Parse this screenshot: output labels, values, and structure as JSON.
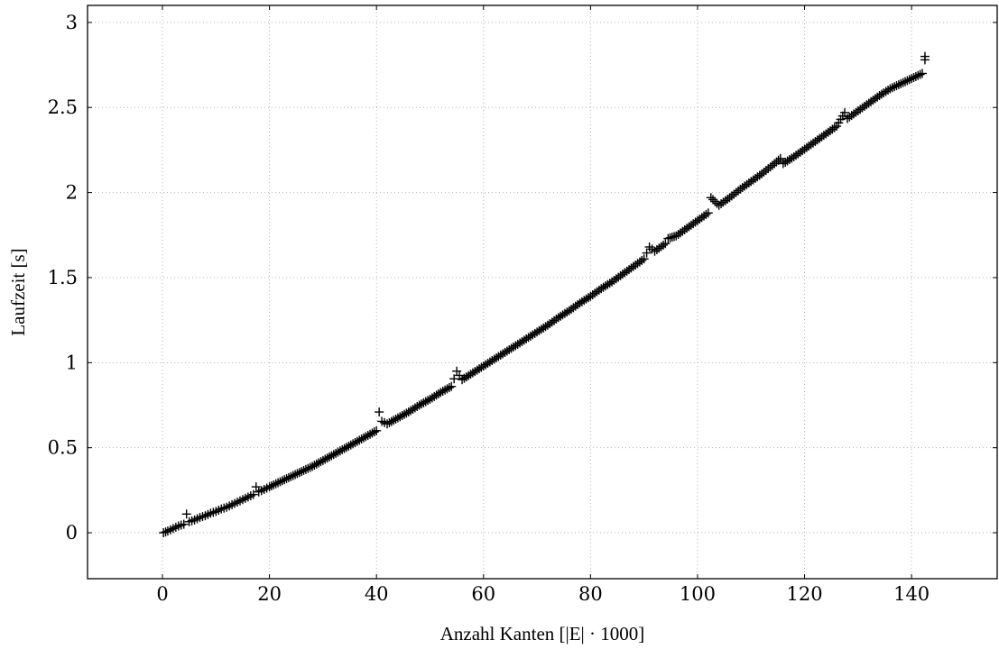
{
  "chart_data": {
    "type": "scatter",
    "title": "",
    "xlabel": "Anzahl Kanten [|E| · 1000]",
    "ylabel": "Laufzeit [s]",
    "xlim": [
      -14,
      156
    ],
    "ylim": [
      -0.27,
      3.1
    ],
    "x_ticks": [
      0,
      20,
      40,
      60,
      80,
      100,
      120,
      140
    ],
    "y_ticks": [
      0,
      0.5,
      1,
      1.5,
      2,
      2.5,
      3
    ],
    "x_tick_labels": [
      "0",
      "20",
      "40",
      "60",
      "80",
      "100",
      "120",
      "140"
    ],
    "y_tick_labels": [
      "0",
      "0.5",
      "1",
      "1.5",
      "2",
      "2.5",
      "3"
    ],
    "grid": true,
    "marker": "+",
    "marker_color": "#000000",
    "series": [
      {
        "points": [
          [
            0.2,
            0.0
          ],
          [
            1.0,
            0.01
          ],
          [
            2.0,
            0.025
          ],
          [
            3.0,
            0.04
          ],
          [
            4.0,
            0.05
          ],
          [
            4.5,
            0.11
          ],
          [
            5.0,
            0.065
          ],
          [
            6.0,
            0.075
          ],
          [
            7.0,
            0.09
          ],
          [
            8.0,
            0.1
          ],
          [
            9.0,
            0.115
          ],
          [
            10.0,
            0.125
          ],
          [
            11.0,
            0.14
          ],
          [
            12.0,
            0.15
          ],
          [
            13.0,
            0.165
          ],
          [
            14.0,
            0.18
          ],
          [
            15.0,
            0.195
          ],
          [
            16.0,
            0.21
          ],
          [
            17.0,
            0.225
          ],
          [
            17.5,
            0.27
          ],
          [
            18.0,
            0.24
          ],
          [
            19.0,
            0.255
          ],
          [
            20.0,
            0.27
          ],
          [
            22.0,
            0.3
          ],
          [
            24.0,
            0.33
          ],
          [
            26.0,
            0.36
          ],
          [
            28.0,
            0.39
          ],
          [
            30.0,
            0.425
          ],
          [
            32.0,
            0.46
          ],
          [
            34.0,
            0.495
          ],
          [
            36.0,
            0.53
          ],
          [
            38.0,
            0.565
          ],
          [
            40.0,
            0.6
          ],
          [
            40.5,
            0.71
          ],
          [
            41.0,
            0.655
          ],
          [
            42.0,
            0.64
          ],
          [
            44.0,
            0.675
          ],
          [
            46.0,
            0.71
          ],
          [
            48.0,
            0.75
          ],
          [
            50.0,
            0.785
          ],
          [
            52.0,
            0.825
          ],
          [
            54.0,
            0.86
          ],
          [
            55.0,
            0.95
          ],
          [
            56.0,
            0.9
          ],
          [
            58.0,
            0.94
          ],
          [
            60.0,
            0.98
          ],
          [
            62.0,
            1.02
          ],
          [
            64.0,
            1.06
          ],
          [
            66.0,
            1.1
          ],
          [
            68.0,
            1.14
          ],
          [
            70.0,
            1.18
          ],
          [
            72.0,
            1.22
          ],
          [
            74.0,
            1.265
          ],
          [
            76.0,
            1.305
          ],
          [
            78.0,
            1.35
          ],
          [
            80.0,
            1.39
          ],
          [
            82.0,
            1.435
          ],
          [
            84.0,
            1.475
          ],
          [
            86.0,
            1.52
          ],
          [
            88.0,
            1.565
          ],
          [
            90.0,
            1.61
          ],
          [
            91.0,
            1.68
          ],
          [
            92.0,
            1.655
          ],
          [
            94.0,
            1.7
          ],
          [
            94.5,
            1.73
          ],
          [
            96.0,
            1.745
          ],
          [
            98.0,
            1.79
          ],
          [
            100.0,
            1.835
          ],
          [
            102.0,
            1.88
          ],
          [
            102.5,
            1.97
          ],
          [
            104.0,
            1.925
          ],
          [
            106.0,
            1.97
          ],
          [
            108.0,
            2.02
          ],
          [
            110.0,
            2.065
          ],
          [
            112.0,
            2.11
          ],
          [
            114.0,
            2.16
          ],
          [
            115.5,
            2.2
          ],
          [
            116.0,
            2.17
          ],
          [
            118.0,
            2.21
          ],
          [
            120.0,
            2.255
          ],
          [
            122.0,
            2.3
          ],
          [
            124.0,
            2.345
          ],
          [
            126.0,
            2.39
          ],
          [
            127.5,
            2.47
          ],
          [
            128.0,
            2.435
          ],
          [
            130.0,
            2.48
          ],
          [
            132.0,
            2.525
          ],
          [
            134.0,
            2.57
          ],
          [
            136.0,
            2.61
          ],
          [
            138.0,
            2.64
          ],
          [
            140.0,
            2.67
          ],
          [
            142.0,
            2.7
          ],
          [
            142.5,
            2.78
          ],
          [
            142.5,
            2.8
          ]
        ]
      }
    ]
  }
}
